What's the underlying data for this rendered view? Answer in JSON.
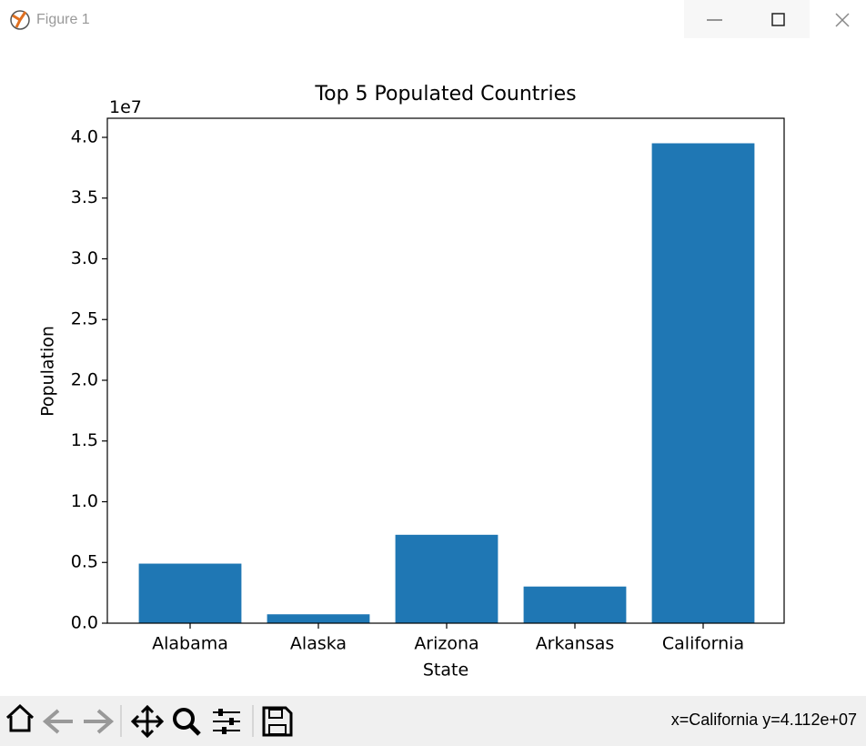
{
  "window": {
    "title": "Figure 1"
  },
  "chart_data": {
    "type": "bar",
    "title": "Top 5 Populated Countries",
    "x_label": "State",
    "y_label": "Population",
    "y_offset_label": "1e7",
    "categories": [
      "Alabama",
      "Alaska",
      "Arizona",
      "Arkansas",
      "California"
    ],
    "values": [
      4903185,
      731545,
      7278717,
      3017804,
      39512223
    ],
    "color": "#1f77b4",
    "ylim": [
      0,
      41572000
    ],
    "yticks": [
      {
        "value": 0,
        "label": "0.0"
      },
      {
        "value": 5000000,
        "label": "0.5"
      },
      {
        "value": 10000000,
        "label": "1.0"
      },
      {
        "value": 15000000,
        "label": "1.5"
      },
      {
        "value": 20000000,
        "label": "2.0"
      },
      {
        "value": 25000000,
        "label": "2.5"
      },
      {
        "value": 30000000,
        "label": "3.0"
      },
      {
        "value": 35000000,
        "label": "3.5"
      },
      {
        "value": 40000000,
        "label": "4.0"
      }
    ],
    "grid": false
  },
  "status": "x=California y=4.112e+07"
}
